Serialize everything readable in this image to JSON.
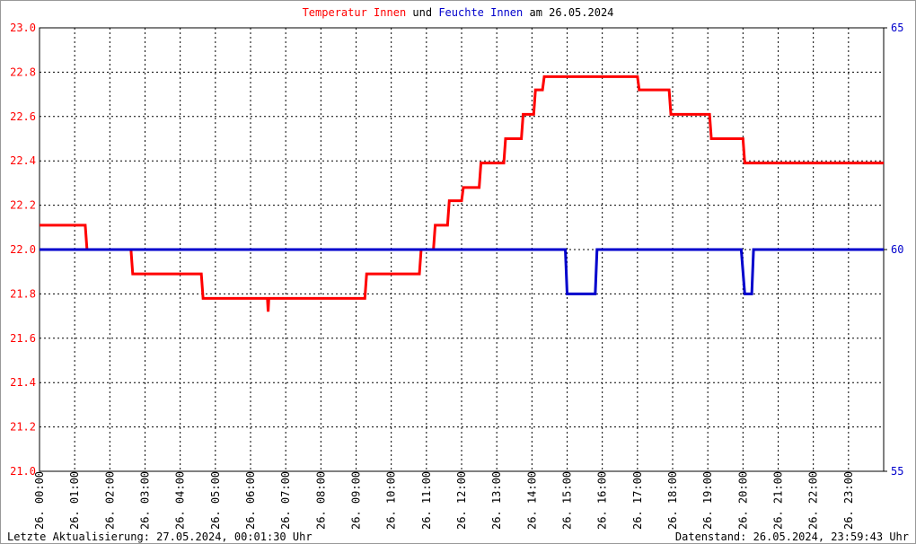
{
  "chart_data": {
    "type": "line",
    "title_joiner": "und",
    "title_suffix": "am 26.05.2024",
    "footer_left": "Letzte Aktualisierung: 27.05.2024, 00:01:30 Uhr",
    "footer_right": "Datenstand: 26.05.2024, 23:59:43 Uhr",
    "xlim": [
      0,
      24
    ],
    "xticks": [
      {
        "value": 0,
        "label": "26. 00:00"
      },
      {
        "value": 1,
        "label": "26. 01:00"
      },
      {
        "value": 2,
        "label": "26. 02:00"
      },
      {
        "value": 3,
        "label": "26. 03:00"
      },
      {
        "value": 4,
        "label": "26. 04:00"
      },
      {
        "value": 5,
        "label": "26. 05:00"
      },
      {
        "value": 6,
        "label": "26. 06:00"
      },
      {
        "value": 7,
        "label": "26. 07:00"
      },
      {
        "value": 8,
        "label": "26. 08:00"
      },
      {
        "value": 9,
        "label": "26. 09:00"
      },
      {
        "value": 10,
        "label": "26. 10:00"
      },
      {
        "value": 11,
        "label": "26. 11:00"
      },
      {
        "value": 12,
        "label": "26. 12:00"
      },
      {
        "value": 13,
        "label": "26. 13:00"
      },
      {
        "value": 14,
        "label": "26. 14:00"
      },
      {
        "value": 15,
        "label": "26. 15:00"
      },
      {
        "value": 16,
        "label": "26. 16:00"
      },
      {
        "value": 17,
        "label": "26. 17:00"
      },
      {
        "value": 18,
        "label": "26. 18:00"
      },
      {
        "value": 19,
        "label": "26. 19:00"
      },
      {
        "value": 20,
        "label": "26. 20:00"
      },
      {
        "value": 21,
        "label": "26. 21:00"
      },
      {
        "value": 22,
        "label": "26. 22:00"
      },
      {
        "value": 23,
        "label": "26. 23:00"
      }
    ],
    "ylim": [
      21,
      23
    ],
    "yticks": [
      {
        "value": 21,
        "label": "21.0"
      },
      21.2,
      21.4,
      21.6,
      21.8,
      {
        "value": 22,
        "label": "22.0"
      },
      22.2,
      22.4,
      22.6,
      22.8,
      {
        "value": 23,
        "label": "23.0"
      }
    ],
    "y2lim": [
      55,
      65
    ],
    "y2ticks": [
      55,
      60,
      65
    ],
    "grid": true,
    "series": [
      {
        "name": "Temperatur Innen",
        "color": "#ff0000",
        "x": [
          0,
          1.3,
          1.35,
          2.6,
          2.65,
          4.6,
          4.65,
          6.48,
          6.5,
          6.52,
          9.25,
          9.3,
          10.8,
          10.85,
          11.2,
          11.25,
          11.6,
          11.65,
          12.0,
          12.05,
          12.5,
          12.55,
          13.2,
          13.25,
          13.7,
          13.75,
          14.05,
          14.1,
          14.3,
          14.35,
          17.0,
          17.05,
          17.9,
          17.95,
          19.05,
          19.1,
          20.0,
          20.05,
          24
        ],
        "values": [
          22.11,
          22.11,
          22.0,
          22.0,
          21.89,
          21.89,
          21.78,
          21.78,
          21.72,
          21.78,
          21.78,
          21.89,
          21.89,
          22.0,
          22.0,
          22.11,
          22.11,
          22.22,
          22.22,
          22.28,
          22.28,
          22.39,
          22.39,
          22.5,
          22.5,
          22.61,
          22.61,
          22.72,
          22.72,
          22.78,
          22.78,
          22.72,
          22.72,
          22.61,
          22.61,
          22.5,
          22.5,
          22.39,
          22.39
        ]
      },
      {
        "name": "Feuchte Innen",
        "color": "#0000cc",
        "axis": "y2",
        "x": [
          0,
          14.95,
          15.0,
          15.8,
          15.85,
          19.95,
          20.05,
          20.25,
          20.3,
          24
        ],
        "values": [
          60,
          60,
          59,
          59,
          60,
          60,
          59,
          59,
          60,
          60
        ]
      }
    ]
  }
}
